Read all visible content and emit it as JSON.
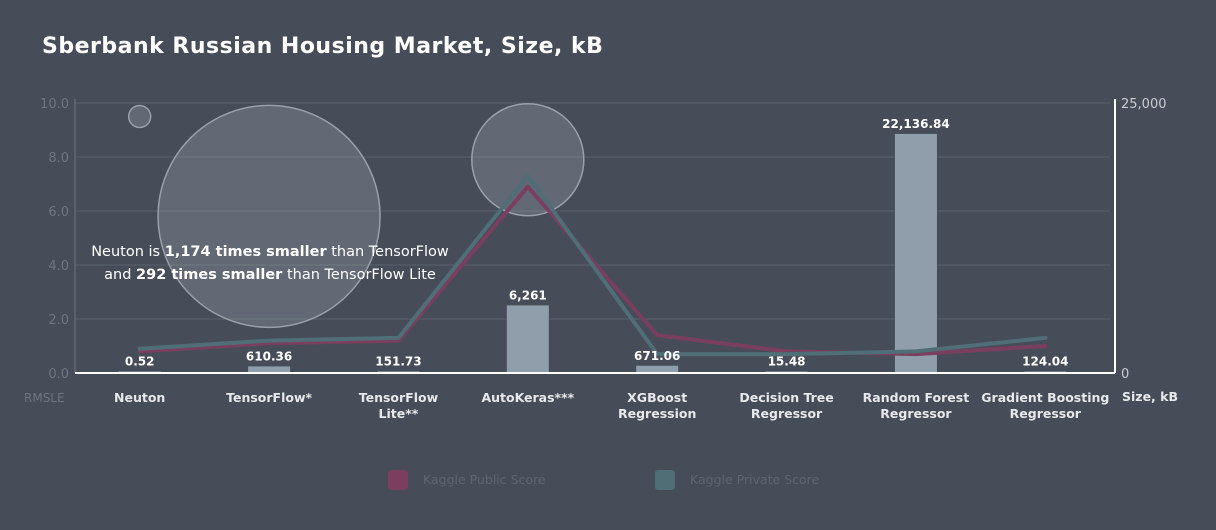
{
  "chart_data": {
    "type": "bar",
    "title": "Sberbank Russian Housing Market, Size, kB",
    "categories": [
      [
        "Neuton"
      ],
      [
        "TensorFlow*"
      ],
      [
        "TensorFlow",
        "Lite**"
      ],
      [
        "AutoKeras***"
      ],
      [
        "XGBoost",
        "Regression"
      ],
      [
        "Decision Tree",
        "Regressor"
      ],
      [
        "Random Forest",
        "Regressor"
      ],
      [
        "Gradient Boosting",
        "Regressor"
      ]
    ],
    "size_kb": [
      0.52,
      610.36,
      151.73,
      6261,
      671.06,
      15.48,
      22136.84,
      124.04
    ],
    "size_labels": [
      "0.52",
      "610.36",
      "151.73",
      "6,261",
      "671.06",
      "15.48",
      "22,136.84",
      "124.04"
    ],
    "series": [
      {
        "name": "Kaggle Public Score",
        "color": "#7a3e5e",
        "values": [
          0.8,
          1.1,
          1.2,
          6.9,
          1.4,
          0.8,
          0.7,
          1.0
        ]
      },
      {
        "name": "Kaggle Private Score",
        "color": "#4f6e76",
        "values": [
          0.9,
          1.2,
          1.3,
          7.3,
          0.7,
          0.7,
          0.8,
          1.3
        ]
      }
    ],
    "bubbles": [
      {
        "category": "Neuton",
        "value": 9.5,
        "relative_size": "small"
      },
      {
        "category": "TensorFlow*",
        "value": 5.8,
        "relative_size": "large"
      },
      {
        "category": "AutoKeras***",
        "value": 7.9,
        "relative_size": "medium"
      }
    ],
    "left_axis": {
      "label": "RMSLE",
      "ylim": [
        0,
        10
      ],
      "ticks": [
        "0.0",
        "2.0",
        "4.0",
        "6.0",
        "8.0",
        "10.0"
      ]
    },
    "right_axis": {
      "label": "Size, kB",
      "ylim": [
        0,
        25000
      ],
      "ticks": [
        "0",
        "25,000"
      ]
    },
    "grid": true,
    "legend_position": "bottom",
    "annotation": {
      "line1": [
        {
          "t": "Neuton is ",
          "b": false
        },
        {
          "t": "1,174 times smaller",
          "b": true
        },
        {
          "t": " than TensorFlow",
          "b": false
        }
      ],
      "line2": [
        {
          "t": "and ",
          "b": false
        },
        {
          "t": "292 times smaller",
          "b": true
        },
        {
          "t": " than TensorFlow Lite",
          "b": false
        }
      ]
    }
  }
}
